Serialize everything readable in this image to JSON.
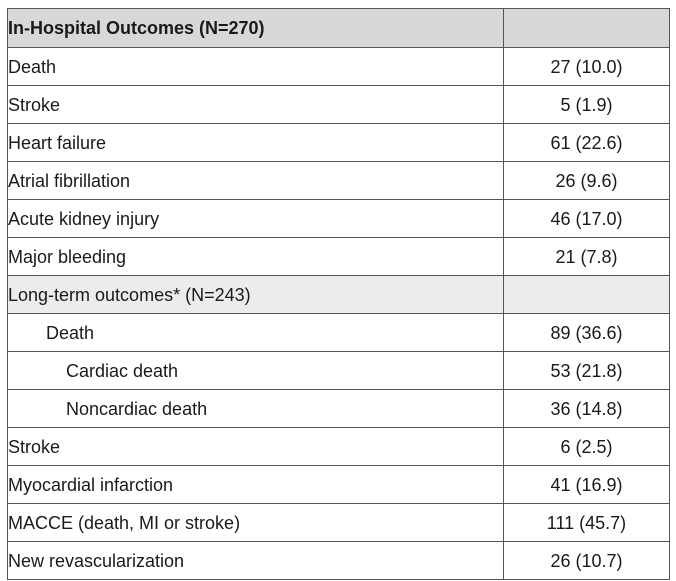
{
  "table": {
    "header": {
      "label": "In-Hospital Outcomes (N=270)",
      "value": ""
    },
    "rows": [
      {
        "type": "row",
        "indent": 0,
        "label": "Death",
        "value": "27 (10.0)"
      },
      {
        "type": "row",
        "indent": 0,
        "label": "Stroke",
        "value": "5 (1.9)"
      },
      {
        "type": "row",
        "indent": 0,
        "label": "Heart failure",
        "value": "61 (22.6)"
      },
      {
        "type": "row",
        "indent": 0,
        "label": "Atrial fibrillation",
        "value": "26 (9.6)"
      },
      {
        "type": "row",
        "indent": 0,
        "label": "Acute kidney injury",
        "value": "46 (17.0)"
      },
      {
        "type": "row",
        "indent": 0,
        "label": "Major bleeding",
        "value": "21 (7.8)"
      },
      {
        "type": "section",
        "indent": 0,
        "label": "Long-term outcomes* (N=243)",
        "value": ""
      },
      {
        "type": "row",
        "indent": 1,
        "label": "Death",
        "value": "89 (36.6)"
      },
      {
        "type": "row",
        "indent": 2,
        "label": "Cardiac death",
        "value": "53 (21.8)"
      },
      {
        "type": "row",
        "indent": 2,
        "label": "Noncardiac death",
        "value": "36 (14.8)"
      },
      {
        "type": "row",
        "indent": 0,
        "label": "Stroke",
        "value": "6 (2.5)"
      },
      {
        "type": "row",
        "indent": 0,
        "label": "Myocardial infarction",
        "value": "41 (16.9)"
      },
      {
        "type": "row",
        "indent": 0,
        "label": "MACCE (death, MI or stroke)",
        "value": "111 (45.7)"
      },
      {
        "type": "row",
        "indent": 0,
        "label": "New revascularization",
        "value": "26 (10.7)"
      }
    ]
  }
}
